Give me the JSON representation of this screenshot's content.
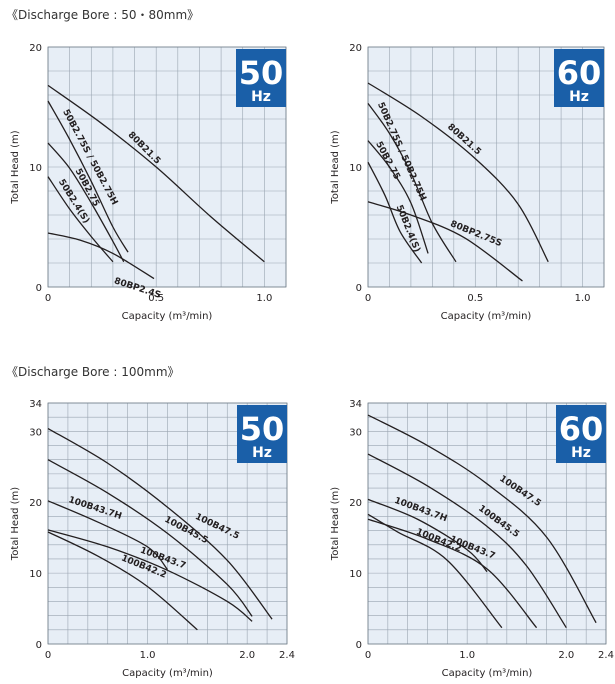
{
  "sections": [
    {
      "title": "《Discharge Bore : 50・80mm》"
    },
    {
      "title": "《Discharge Bore : 100mm》"
    }
  ],
  "colors": {
    "plot_background": "#e7eef6",
    "grid": "#9aa5b1",
    "curve": "#231f20",
    "badge": "#1a5fa8",
    "badge_text": "#ffffff"
  },
  "chart_data": [
    {
      "type": "line",
      "badge": {
        "freq": "50",
        "unit": "Hz"
      },
      "xlabel": "Capacity (m³/min)",
      "ylabel": "Total Head (m)",
      "xlim": [
        0,
        1.1
      ],
      "ylim": [
        0,
        20
      ],
      "x_ticks": [
        {
          "v": 0,
          "label": "0"
        },
        {
          "v": 0.5,
          "label": "0.5"
        },
        {
          "v": 1.0,
          "label": "1.0"
        }
      ],
      "y_ticks": [
        {
          "v": 0,
          "label": "0"
        },
        {
          "v": 10,
          "label": "10"
        },
        {
          "v": 20,
          "label": "20"
        }
      ],
      "grid": {
        "x_step": 0.1,
        "y_step": 2
      },
      "series": [
        {
          "name": "80B21.5",
          "points": [
            [
              0,
              16.8
            ],
            [
              0.25,
              13.6
            ],
            [
              0.5,
              10.0
            ],
            [
              0.75,
              5.9
            ],
            [
              1.0,
              2.1
            ]
          ]
        },
        {
          "name": "50B2.75S / 50B2.75H",
          "points": [
            [
              0,
              15.5
            ],
            [
              0.1,
              12.3
            ],
            [
              0.2,
              8.8
            ],
            [
              0.3,
              5.0
            ],
            [
              0.37,
              2.9
            ]
          ]
        },
        {
          "name": "50B2.75",
          "points": [
            [
              0,
              12.0
            ],
            [
              0.1,
              9.9
            ],
            [
              0.2,
              7.0
            ],
            [
              0.3,
              3.8
            ],
            [
              0.35,
              2.1
            ]
          ]
        },
        {
          "name": "50B2.4(S)",
          "points": [
            [
              0,
              9.2
            ],
            [
              0.1,
              6.5
            ],
            [
              0.2,
              4.2
            ],
            [
              0.3,
              2.1
            ]
          ]
        },
        {
          "name": "80BP2.4S",
          "points": [
            [
              0,
              4.5
            ],
            [
              0.15,
              3.9
            ],
            [
              0.3,
              2.8
            ],
            [
              0.49,
              0.7
            ]
          ]
        }
      ]
    },
    {
      "type": "line",
      "badge": {
        "freq": "60",
        "unit": "Hz"
      },
      "xlabel": "Capacity (m³/min)",
      "ylabel": "Total Head (m)",
      "xlim": [
        0,
        1.1
      ],
      "ylim": [
        0,
        20
      ],
      "x_ticks": [
        {
          "v": 0,
          "label": "0"
        },
        {
          "v": 0.5,
          "label": "0.5"
        },
        {
          "v": 1.0,
          "label": "1.0"
        }
      ],
      "y_ticks": [
        {
          "v": 0,
          "label": "0"
        },
        {
          "v": 10,
          "label": "10"
        },
        {
          "v": 20,
          "label": "20"
        }
      ],
      "grid": {
        "x_step": 0.1,
        "y_step": 2
      },
      "series": [
        {
          "name": "80B21.5",
          "points": [
            [
              0,
              17.0
            ],
            [
              0.25,
              14.2
            ],
            [
              0.5,
              10.7
            ],
            [
              0.7,
              6.9
            ],
            [
              0.84,
              2.1
            ]
          ]
        },
        {
          "name": "50B2.75S / 50B2.75H",
          "points": [
            [
              0,
              15.3
            ],
            [
              0.1,
              12.8
            ],
            [
              0.2,
              9.5
            ],
            [
              0.3,
              5.3
            ],
            [
              0.41,
              2.1
            ]
          ]
        },
        {
          "name": "50B2.75",
          "points": [
            [
              0,
              12.2
            ],
            [
              0.1,
              10.0
            ],
            [
              0.2,
              7.0
            ],
            [
              0.28,
              2.8
            ]
          ]
        },
        {
          "name": "50B2.4(S)",
          "points": [
            [
              0,
              10.4
            ],
            [
              0.08,
              7.6
            ],
            [
              0.15,
              4.6
            ],
            [
              0.25,
              2.0
            ]
          ]
        },
        {
          "name": "80BP2.75S",
          "points": [
            [
              0,
              7.1
            ],
            [
              0.2,
              6.0
            ],
            [
              0.45,
              4.1
            ],
            [
              0.72,
              0.5
            ]
          ]
        }
      ]
    },
    {
      "type": "line",
      "badge": {
        "freq": "50",
        "unit": "Hz"
      },
      "xlabel": "Capacity (m³/min)",
      "ylabel": "Total Head (m)",
      "xlim": [
        0,
        2.4
      ],
      "ylim": [
        0,
        34
      ],
      "x_ticks": [
        {
          "v": 0,
          "label": "0"
        },
        {
          "v": 1.0,
          "label": "1.0"
        },
        {
          "v": 2.0,
          "label": "2.0"
        },
        {
          "v": 2.4,
          "label": "2.4"
        }
      ],
      "y_ticks": [
        {
          "v": 0,
          "label": "0"
        },
        {
          "v": 10,
          "label": "10"
        },
        {
          "v": 20,
          "label": "20"
        },
        {
          "v": 30,
          "label": "30"
        },
        {
          "v": 34,
          "label": "34"
        }
      ],
      "grid": {
        "x_step": 0.2,
        "y_step": 2
      },
      "series": [
        {
          "name": "100B47.5",
          "points": [
            [
              0,
              30.4
            ],
            [
              0.6,
              25.5
            ],
            [
              1.2,
              19.3
            ],
            [
              1.8,
              11.8
            ],
            [
              2.25,
              3.5
            ]
          ]
        },
        {
          "name": "100B45.5",
          "points": [
            [
              0,
              26.0
            ],
            [
              0.6,
              21.3
            ],
            [
              1.2,
              15.6
            ],
            [
              1.8,
              8.4
            ],
            [
              2.05,
              3.9
            ]
          ]
        },
        {
          "name": "100B43.7H",
          "points": [
            [
              0,
              20.2
            ],
            [
              0.5,
              17.2
            ],
            [
              1.0,
              13.7
            ],
            [
              1.2,
              10.5
            ]
          ]
        },
        {
          "name": "100B43.7",
          "points": [
            [
              0,
              16.1
            ],
            [
              0.6,
              13.7
            ],
            [
              1.2,
              10.4
            ],
            [
              1.8,
              6.0
            ],
            [
              2.05,
              3.2
            ]
          ]
        },
        {
          "name": "100B42.2",
          "points": [
            [
              0,
              15.8
            ],
            [
              0.5,
              12.4
            ],
            [
              1.0,
              8.1
            ],
            [
              1.5,
              2.0
            ]
          ]
        }
      ]
    },
    {
      "type": "line",
      "badge": {
        "freq": "60",
        "unit": "Hz"
      },
      "xlabel": "Capacity (m³/min)",
      "ylabel": "Total Head (m)",
      "xlim": [
        0,
        2.4
      ],
      "ylim": [
        0,
        34
      ],
      "x_ticks": [
        {
          "v": 0,
          "label": "0"
        },
        {
          "v": 1.0,
          "label": "1.0"
        },
        {
          "v": 2.0,
          "label": "2.0"
        },
        {
          "v": 2.4,
          "label": "2.4"
        }
      ],
      "y_ticks": [
        {
          "v": 0,
          "label": "0"
        },
        {
          "v": 10,
          "label": "10"
        },
        {
          "v": 20,
          "label": "20"
        },
        {
          "v": 30,
          "label": "30"
        },
        {
          "v": 34,
          "label": "34"
        }
      ],
      "grid": {
        "x_step": 0.2,
        "y_step": 2
      },
      "series": [
        {
          "name": "100B47.5",
          "points": [
            [
              0,
              32.3
            ],
            [
              0.6,
              28.0
            ],
            [
              1.2,
              22.6
            ],
            [
              1.8,
              15.1
            ],
            [
              2.3,
              3.0
            ]
          ]
        },
        {
          "name": "100B45.5",
          "points": [
            [
              0,
              26.8
            ],
            [
              0.6,
              22.3
            ],
            [
              1.2,
              16.6
            ],
            [
              1.6,
              11.0
            ],
            [
              2.0,
              2.3
            ]
          ]
        },
        {
          "name": "100B43.7H",
          "points": [
            [
              0,
              20.4
            ],
            [
              0.5,
              17.6
            ],
            [
              1.0,
              13.3
            ],
            [
              1.2,
              10.2
            ]
          ]
        },
        {
          "name": "100B43.7",
          "points": [
            [
              0,
              17.6
            ],
            [
              0.6,
              14.8
            ],
            [
              1.2,
              10.6
            ],
            [
              1.7,
              2.3
            ]
          ]
        },
        {
          "name": "100B42.2",
          "points": [
            [
              0,
              18.3
            ],
            [
              0.3,
              15.8
            ],
            [
              0.8,
              11.8
            ],
            [
              1.35,
              2.3
            ]
          ]
        }
      ]
    }
  ]
}
